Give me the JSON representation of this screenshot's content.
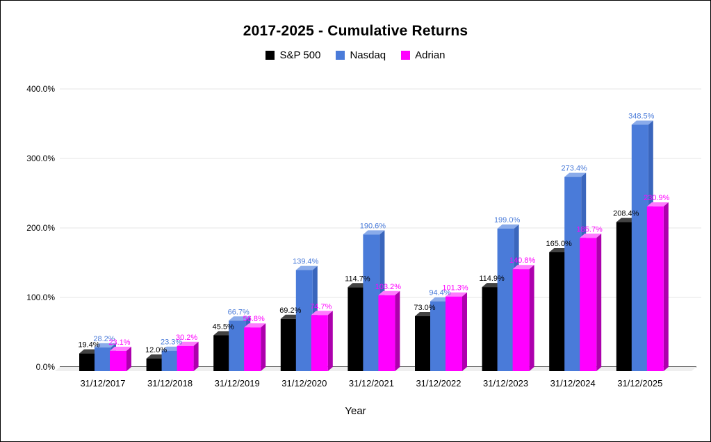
{
  "title": "2017-2025 - Cumulative Returns",
  "legend": {
    "items": [
      {
        "label": "S&P 500",
        "color": "#000000"
      },
      {
        "label": "Nasdaq",
        "color": "#4a7bd9"
      },
      {
        "label": "Adrian",
        "color": "#ff00ff"
      }
    ]
  },
  "x_axis_title": "Year",
  "chart_data": {
    "type": "bar",
    "style": "3d-column",
    "title": "2017-2025 - Cumulative Returns",
    "categories": [
      "31/12/2017",
      "31/12/2018",
      "31/12/2019",
      "31/12/2020",
      "31/12/2021",
      "31/12/2022",
      "31/12/2023",
      "31/12/2024",
      "31/12/2025"
    ],
    "series": [
      {
        "name": "S&P 500",
        "color": "#000000",
        "top_color": "#434343",
        "side_color": "#1f1f1f",
        "label_color": "#000000",
        "values": [
          19.4,
          12.0,
          45.5,
          69.2,
          114.7,
          73.0,
          114.9,
          165.0,
          208.4
        ]
      },
      {
        "name": "Nasdaq",
        "color": "#4a7bd9",
        "top_color": "#8aabea",
        "side_color": "#3a66bd",
        "label_color": "#4a7bd9",
        "values": [
          28.2,
          23.3,
          66.7,
          139.4,
          190.6,
          94.4,
          199.0,
          273.4,
          348.5
        ]
      },
      {
        "name": "Adrian",
        "color": "#ff00ff",
        "top_color": "#ff7bff",
        "side_color": "#ad00ad",
        "label_color": "#ff00ff",
        "values": [
          23.1,
          30.2,
          56.8,
          74.7,
          103.2,
          101.3,
          140.8,
          185.7,
          230.9
        ]
      }
    ],
    "data_label_format": "{value}%",
    "y_ticks": [
      "0.0%",
      "100.0%",
      "200.0%",
      "300.0%",
      "400.0%"
    ],
    "ylim": [
      0,
      400
    ],
    "xlabel": "Year",
    "legend_position": "top",
    "grid": true,
    "grid_color": "#e6e6e6",
    "baseline_color": "#333333",
    "floor_color": "#efefef"
  }
}
